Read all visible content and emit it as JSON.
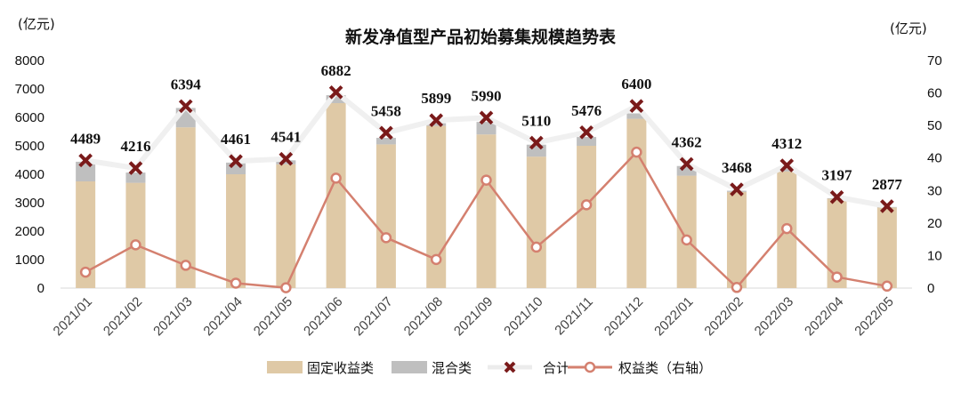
{
  "chart_data": {
    "type": "bar",
    "title": "新发净值型产品初始募集规模趋势表",
    "left_unit": "(亿元)",
    "right_unit": "(亿元)",
    "categories": [
      "2021/01",
      "2021/02",
      "2021/03",
      "2021/04",
      "2021/05",
      "2021/06",
      "2021/07",
      "2021/08",
      "2021/09",
      "2021/10",
      "2021/11",
      "2021/12",
      "2022/01",
      "2022/02",
      "2022/03",
      "2022/04",
      "2022/05"
    ],
    "y_left_ticks": [
      "0",
      "1000",
      "2000",
      "3000",
      "4000",
      "5000",
      "6000",
      "7000",
      "8000"
    ],
    "y_right_ticks": [
      "0",
      "10",
      "20",
      "30",
      "40",
      "50",
      "60",
      "70"
    ],
    "ylim_left": [
      0,
      8000
    ],
    "ylim_right": [
      0,
      70
    ],
    "series": [
      {
        "name": "固定收益类",
        "kind": "stacked-bar",
        "axis": "left",
        "color": "#dfc9a6",
        "values": [
          3750,
          3700,
          5650,
          4000,
          4350,
          6500,
          5050,
          5700,
          5400,
          4620,
          5000,
          5950,
          3950,
          3380,
          4100,
          3140,
          2830
        ]
      },
      {
        "name": "混合类",
        "kind": "stacked-bar",
        "axis": "left",
        "color": "#bfbfbf",
        "values": [
          690,
          360,
          680,
          410,
          140,
          280,
          230,
          95,
          440,
          420,
          310,
          190,
          340,
          40,
          120,
          20,
          20
        ]
      },
      {
        "name": "合计",
        "kind": "marker-line",
        "axis": "left",
        "color": "#7a1a1a",
        "line_color": "#f0f0f0",
        "values": [
          4489,
          4216,
          6394,
          4461,
          4541,
          6882,
          5458,
          5899,
          5990,
          5110,
          5476,
          6400,
          4362,
          3468,
          4312,
          3197,
          2877
        ],
        "labels": [
          "4489",
          "4216",
          "6394",
          "4461",
          "4541",
          "6882",
          "5458",
          "5899",
          "5990",
          "5110",
          "5476",
          "6400",
          "4362",
          "3468",
          "4312",
          "3197",
          "2877"
        ]
      },
      {
        "name": "权益类（右轴）",
        "kind": "line",
        "axis": "right",
        "color": "#d4806f",
        "values": [
          4.9,
          13.3,
          7.0,
          1.5,
          0.1,
          33.8,
          15.5,
          8.8,
          33.2,
          12.6,
          25.6,
          41.8,
          14.8,
          0.2,
          18.3,
          3.4,
          0.6
        ]
      }
    ],
    "grid": false,
    "legend_position": "bottom"
  }
}
